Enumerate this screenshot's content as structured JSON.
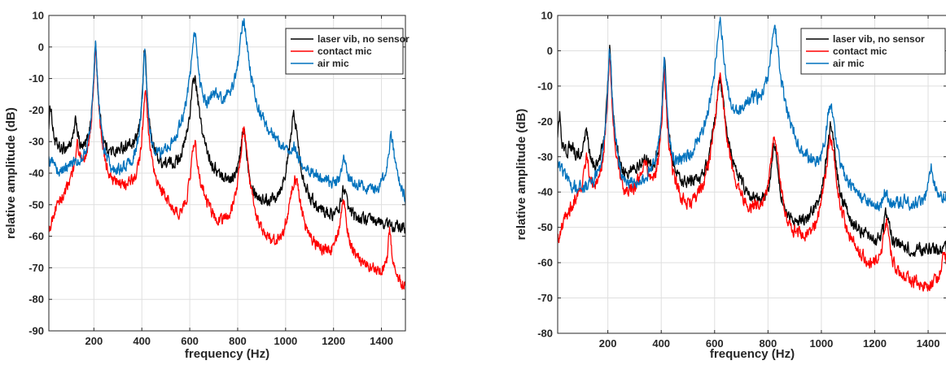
{
  "chart_data": [
    {
      "type": "line",
      "title": "",
      "xlabel": "frequency (Hz)",
      "ylabel": "relative amplitude (dB)",
      "xlim": [
        12,
        1500
      ],
      "ylim": [
        -90,
        10
      ],
      "xticks": [
        200,
        400,
        600,
        800,
        1000,
        1200,
        1400
      ],
      "yticks": [
        10,
        0,
        -10,
        -20,
        -30,
        -40,
        -50,
        -60,
        -70,
        -80,
        -90
      ],
      "xticklabels": [
        "200",
        "400",
        "600",
        "800",
        "1000",
        "1200",
        "1400"
      ],
      "yticklabels": [
        "10",
        "0",
        "-10",
        "-20",
        "-30",
        "-40",
        "-50",
        "-60",
        "-70",
        "-80",
        "-90"
      ],
      "grid": true,
      "legend_position": "top-right",
      "series": [
        {
          "name": "laser vib, no sensor",
          "color": "#000000",
          "baseline": [
            [
              12,
              -30
            ],
            [
              60,
              -34
            ],
            [
              100,
              -33
            ],
            [
              150,
              -38
            ],
            [
              180,
              -38
            ],
            [
              250,
              -38
            ],
            [
              300,
              -35
            ],
            [
              340,
              -33
            ],
            [
              380,
              -37
            ],
            [
              450,
              -42
            ],
            [
              520,
              -42
            ],
            [
              560,
              -45
            ],
            [
              590,
              -48
            ],
            [
              650,
              -43
            ],
            [
              700,
              -46
            ],
            [
              760,
              -47
            ],
            [
              800,
              -48
            ],
            [
              870,
              -55
            ],
            [
              950,
              -55
            ],
            [
              1000,
              -55
            ],
            [
              1100,
              -56
            ],
            [
              1200,
              -57
            ],
            [
              1300,
              -56
            ],
            [
              1400,
              -57
            ],
            [
              1500,
              -59
            ]
          ],
          "peaks": [
            {
              "f": 20,
              "a": -21,
              "w": 5
            },
            {
              "f": 125,
              "a": -27,
              "w": 8
            },
            {
              "f": 207,
              "a": 0,
              "w": 5
            },
            {
              "f": 412,
              "a": -1,
              "w": 5
            },
            {
              "f": 620,
              "a": -10,
              "w": 12
            },
            {
              "f": 825,
              "a": -27,
              "w": 10
            },
            {
              "f": 1035,
              "a": -22,
              "w": 12
            },
            {
              "f": 1243,
              "a": -48,
              "w": 10
            }
          ]
        },
        {
          "name": "contact mic",
          "color": "#ff0000",
          "baseline": [
            [
              12,
              -68
            ],
            [
              30,
              -57
            ],
            [
              80,
              -50
            ],
            [
              150,
              -42
            ],
            [
              180,
              -44
            ],
            [
              250,
              -52
            ],
            [
              300,
              -49
            ],
            [
              360,
              -48
            ],
            [
              390,
              -50
            ],
            [
              450,
              -50
            ],
            [
              500,
              -52
            ],
            [
              550,
              -62
            ],
            [
              600,
              -70
            ],
            [
              650,
              -52
            ],
            [
              700,
              -60
            ],
            [
              760,
              -64
            ],
            [
              800,
              -68
            ],
            [
              870,
              -75
            ],
            [
              950,
              -74
            ],
            [
              1000,
              -73
            ],
            [
              1100,
              -69
            ],
            [
              1200,
              -70
            ],
            [
              1300,
              -72
            ],
            [
              1400,
              -74
            ],
            [
              1450,
              -76
            ],
            [
              1500,
              -80
            ]
          ],
          "peaks": [
            {
              "f": 130,
              "a": -34,
              "w": 8
            },
            {
              "f": 207,
              "a": -1,
              "w": 5
            },
            {
              "f": 415,
              "a": -15,
              "w": 7
            },
            {
              "f": 620,
              "a": -31,
              "w": 12
            },
            {
              "f": 825,
              "a": -26,
              "w": 10
            },
            {
              "f": 1040,
              "a": -42,
              "w": 16
            },
            {
              "f": 1240,
              "a": -49,
              "w": 10
            },
            {
              "f": 1435,
              "a": -60,
              "w": 6
            }
          ]
        },
        {
          "name": "air mic",
          "color": "#0072bd",
          "baseline": [
            [
              12,
              -37
            ],
            [
              60,
              -42
            ],
            [
              120,
              -40
            ],
            [
              180,
              -44
            ],
            [
              250,
              -50
            ],
            [
              300,
              -48
            ],
            [
              350,
              -46
            ],
            [
              380,
              -48
            ],
            [
              450,
              -46
            ],
            [
              500,
              -43
            ],
            [
              550,
              -42
            ],
            [
              590,
              -42
            ],
            [
              650,
              -30
            ],
            [
              700,
              -17
            ],
            [
              760,
              -22
            ],
            [
              800,
              -25
            ],
            [
              870,
              -35
            ],
            [
              950,
              -36
            ],
            [
              1000,
              -40
            ],
            [
              1100,
              -46
            ],
            [
              1200,
              -50
            ],
            [
              1300,
              -48
            ],
            [
              1380,
              -50
            ],
            [
              1450,
              -40
            ],
            [
              1500,
              -53
            ]
          ],
          "peaks": [
            {
              "f": 207,
              "a": 0,
              "w": 5
            },
            {
              "f": 412,
              "a": -2,
              "w": 5
            },
            {
              "f": 620,
              "a": 4,
              "w": 10
            },
            {
              "f": 825,
              "a": 8,
              "w": 12
            },
            {
              "f": 1035,
              "a": -41,
              "w": 14
            },
            {
              "f": 1245,
              "a": -40,
              "w": 12
            },
            {
              "f": 1440,
              "a": -30,
              "w": 8
            }
          ]
        }
      ]
    },
    {
      "type": "line",
      "title": "",
      "xlabel": "frequency (Hz)",
      "ylabel": "relative amplitude (dB)",
      "xlim": [
        12,
        1470
      ],
      "ylim": [
        -80,
        10
      ],
      "xticks": [
        200,
        400,
        600,
        800,
        1000,
        1200,
        1400
      ],
      "yticks": [
        10,
        0,
        -10,
        -20,
        -30,
        -40,
        -50,
        -60,
        -70,
        -80
      ],
      "xticklabels": [
        "200",
        "400",
        "600",
        "800",
        "1000",
        "1200",
        "1400"
      ],
      "yticklabels": [
        "10",
        "0",
        "-10",
        "-20",
        "-30",
        "-40",
        "-50",
        "-60",
        "-70",
        "-80"
      ],
      "grid": true,
      "legend_position": "top-right",
      "series": [
        {
          "name": "laser vib, no sensor",
          "color": "#000000",
          "baseline": [
            [
              12,
              -33
            ],
            [
              60,
              -28
            ],
            [
              100,
              -32
            ],
            [
              150,
              -38
            ],
            [
              180,
              -40
            ],
            [
              250,
              -40
            ],
            [
              300,
              -36
            ],
            [
              340,
              -32
            ],
            [
              380,
              -38
            ],
            [
              450,
              -42
            ],
            [
              520,
              -42
            ],
            [
              560,
              -48
            ],
            [
              590,
              -48
            ],
            [
              650,
              -41
            ],
            [
              700,
              -46
            ],
            [
              760,
              -48
            ],
            [
              800,
              -49
            ],
            [
              870,
              -55
            ],
            [
              950,
              -54
            ],
            [
              1000,
              -53
            ],
            [
              1100,
              -55
            ],
            [
              1200,
              -57
            ],
            [
              1300,
              -58
            ],
            [
              1400,
              -58
            ],
            [
              1470,
              -57
            ]
          ],
          "peaks": [
            {
              "f": 20,
              "a": -20,
              "w": 5
            },
            {
              "f": 120,
              "a": -27,
              "w": 8
            },
            {
              "f": 207,
              "a": 0,
              "w": 5
            },
            {
              "f": 412,
              "a": -3,
              "w": 5
            },
            {
              "f": 620,
              "a": -9,
              "w": 12
            },
            {
              "f": 825,
              "a": -28,
              "w": 10
            },
            {
              "f": 1035,
              "a": -22,
              "w": 12
            },
            {
              "f": 1245,
              "a": -50,
              "w": 10
            }
          ]
        },
        {
          "name": "contact mic",
          "color": "#ff0000",
          "baseline": [
            [
              12,
              -60
            ],
            [
              40,
              -50
            ],
            [
              90,
              -44
            ],
            [
              140,
              -46
            ],
            [
              180,
              -52
            ],
            [
              250,
              -50
            ],
            [
              300,
              -42
            ],
            [
              340,
              -33
            ],
            [
              380,
              -46
            ],
            [
              450,
              -45
            ],
            [
              500,
              -54
            ],
            [
              550,
              -56
            ],
            [
              590,
              -52
            ],
            [
              650,
              -52
            ],
            [
              700,
              -55
            ],
            [
              760,
              -52
            ],
            [
              800,
              -50
            ],
            [
              870,
              -63
            ],
            [
              950,
              -64
            ],
            [
              1000,
              -60
            ],
            [
              1100,
              -65
            ],
            [
              1200,
              -70
            ],
            [
              1300,
              -70
            ],
            [
              1400,
              -72
            ],
            [
              1470,
              -64
            ]
          ],
          "peaks": [
            {
              "f": 120,
              "a": -34,
              "w": 10
            },
            {
              "f": 207,
              "a": -2,
              "w": 5
            },
            {
              "f": 412,
              "a": -6,
              "w": 5
            },
            {
              "f": 620,
              "a": -7,
              "w": 10
            },
            {
              "f": 825,
              "a": -25,
              "w": 10
            },
            {
              "f": 1035,
              "a": -25,
              "w": 12
            },
            {
              "f": 1242,
              "a": -50,
              "w": 10
            },
            {
              "f": 1460,
              "a": -62,
              "w": 6
            }
          ]
        },
        {
          "name": "air mic",
          "color": "#0072bd",
          "baseline": [
            [
              12,
              -33
            ],
            [
              60,
              -40
            ],
            [
              120,
              -43
            ],
            [
              180,
              -47
            ],
            [
              250,
              -49
            ],
            [
              300,
              -46
            ],
            [
              350,
              -42
            ],
            [
              380,
              -44
            ],
            [
              450,
              -42
            ],
            [
              500,
              -40
            ],
            [
              550,
              -38
            ],
            [
              590,
              -35
            ],
            [
              650,
              -30
            ],
            [
              700,
              -20
            ],
            [
              740,
              -15
            ],
            [
              780,
              -19
            ],
            [
              800,
              -20
            ],
            [
              870,
              -38
            ],
            [
              950,
              -42
            ],
            [
              1000,
              -46
            ],
            [
              1100,
              -48
            ],
            [
              1200,
              -53
            ],
            [
              1300,
              -46
            ],
            [
              1380,
              -47
            ],
            [
              1470,
              -43
            ]
          ],
          "peaks": [
            {
              "f": 207,
              "a": 0,
              "w": 5
            },
            {
              "f": 412,
              "a": -3,
              "w": 5
            },
            {
              "f": 620,
              "a": 8,
              "w": 10
            },
            {
              "f": 825,
              "a": 6,
              "w": 12
            },
            {
              "f": 1035,
              "a": -16,
              "w": 12
            },
            {
              "f": 1240,
              "a": -48,
              "w": 10
            },
            {
              "f": 1410,
              "a": -36,
              "w": 10
            }
          ]
        }
      ]
    }
  ]
}
